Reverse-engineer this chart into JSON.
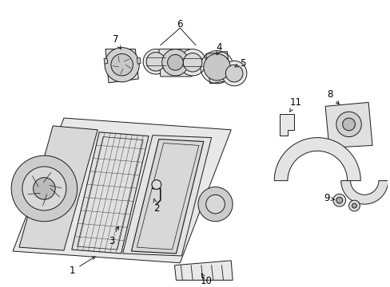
{
  "bg_color": "#ffffff",
  "line_color": "#1a1a1a",
  "fig_width": 4.89,
  "fig_height": 3.6,
  "dpi": 100,
  "font_size": 8.5,
  "label_color": "#000000"
}
